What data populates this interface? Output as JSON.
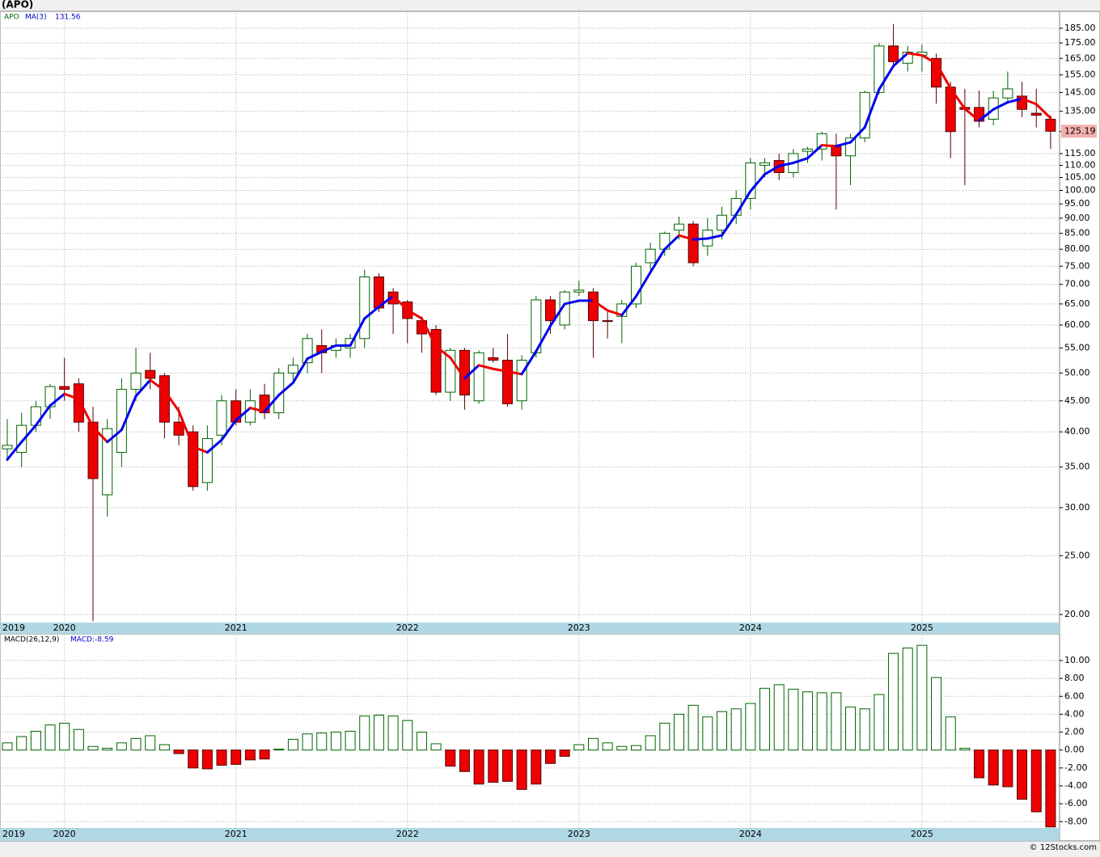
{
  "chart_data": [
    {
      "type": "candlestick",
      "title": "(APO)",
      "categories": [
        "2019",
        null,
        null,
        null,
        "2020",
        null,
        null,
        null,
        null,
        null,
        null,
        null,
        null,
        null,
        null,
        null,
        "2021",
        null,
        null,
        null,
        null,
        null,
        null,
        null,
        null,
        null,
        null,
        null,
        "2022",
        null,
        null,
        null,
        null,
        null,
        null,
        null,
        null,
        null,
        null,
        null,
        "2023",
        null,
        null,
        null,
        null,
        null,
        null,
        null,
        null,
        null,
        null,
        null,
        "2024",
        null,
        null,
        null,
        null,
        null,
        null,
        null,
        null,
        null,
        null,
        null,
        "2025",
        null,
        null,
        null,
        null,
        null,
        null,
        null,
        null,
        null
      ],
      "series": [
        {
          "name": "APO",
          "color": "#006400",
          "color_up": "#ffffff",
          "color_down": "#ee0000",
          "last_close_label": "125.19",
          "open": [
            37.5,
            37,
            41,
            44,
            47.5,
            48,
            41.5,
            31.5,
            37,
            47,
            50.5,
            49.5,
            41.5,
            40,
            33,
            39.5,
            45,
            41.5,
            46,
            43,
            50,
            52,
            55.5,
            54.5,
            55,
            57,
            72,
            68,
            65.5,
            61,
            59,
            46.5,
            54.5,
            45,
            53,
            52.5,
            45,
            54,
            66,
            60,
            68,
            68,
            61,
            62,
            65,
            76,
            80,
            86,
            88,
            81,
            86,
            91,
            97,
            110,
            112,
            107,
            116,
            117,
            118,
            114,
            122,
            145,
            173,
            162,
            167,
            165,
            148,
            137,
            137,
            131,
            142,
            143,
            134,
            131
          ],
          "high": [
            42,
            43,
            45,
            48,
            53,
            49,
            44,
            42,
            49,
            55,
            54,
            50,
            44,
            41,
            41,
            46,
            47,
            47,
            48,
            51,
            53,
            58,
            59,
            57,
            58,
            74,
            73,
            69,
            66,
            62,
            60,
            55,
            55,
            54.5,
            55,
            58,
            53.5,
            67,
            67,
            68.5,
            71,
            69,
            63,
            66,
            76,
            82,
            85.5,
            90.5,
            89,
            90,
            94,
            100,
            113,
            113,
            115,
            117,
            118,
            125,
            124,
            124,
            146,
            175,
            188,
            173,
            174,
            168,
            151,
            147,
            146,
            146,
            157,
            151,
            147,
            133
          ],
          "low": [
            36,
            35,
            40,
            42,
            45,
            40,
            19.5,
            29,
            35,
            45,
            47,
            39,
            38,
            32,
            32,
            38,
            41,
            41,
            42,
            42,
            48,
            50,
            50,
            53,
            53,
            55,
            63,
            58,
            56,
            54,
            46,
            45,
            43.5,
            44.5,
            52,
            44,
            43.5,
            53,
            58,
            59,
            67,
            53,
            57,
            56,
            64,
            74,
            78,
            83,
            75,
            78,
            83,
            88,
            93,
            105,
            104,
            105,
            111,
            112,
            93,
            102,
            120,
            144,
            160,
            157,
            157,
            139,
            113,
            102,
            127,
            128,
            140,
            132,
            127,
            117
          ],
          "close": [
            38,
            41,
            44,
            47.5,
            47,
            41.5,
            33.5,
            40.5,
            47,
            50,
            49,
            41.5,
            39.5,
            32.5,
            39,
            45,
            41.5,
            45,
            43,
            50,
            51.5,
            57,
            54,
            55.5,
            57,
            72,
            64,
            65,
            61.5,
            58,
            46.5,
            54.5,
            46,
            54,
            52.5,
            44.5,
            52.5,
            66,
            61,
            68,
            68.5,
            61,
            60.8,
            65,
            75,
            80,
            85,
            88,
            76,
            86,
            91,
            97,
            111,
            111,
            107,
            115,
            117,
            124,
            114,
            122,
            145,
            173,
            163,
            169,
            169,
            148,
            125,
            136,
            130,
            142,
            147,
            136,
            133,
            125.19
          ]
        },
        {
          "name": "MA(3)",
          "color_up": "#0000ee",
          "color_down": "#ee0000",
          "last_value_label": "131.56",
          "values": [
            36,
            38.5,
            41,
            44.2,
            46.2,
            45.3,
            40.7,
            38.5,
            40.3,
            45.8,
            48.7,
            46.8,
            43.3,
            37.8,
            37,
            38.8,
            41.8,
            43.8,
            43.2,
            46,
            48.2,
            52.8,
            54.2,
            55.5,
            55.5,
            61.5,
            64.3,
            67,
            63.5,
            61.5,
            55.3,
            53,
            49,
            51.5,
            50.8,
            50.3,
            49.8,
            54.3,
            59.8,
            65,
            65.8,
            65.8,
            63.4,
            62.3,
            66.9,
            73.3,
            80,
            84.3,
            83,
            83.3,
            84.3,
            91.3,
            99.7,
            106.3,
            109.7,
            111,
            113,
            118.7,
            118.3,
            120,
            127,
            146.7,
            160.3,
            168.3,
            167,
            162,
            147.3,
            136.3,
            130.3,
            136,
            139.7,
            141.7,
            138.7,
            131.56
          ]
        }
      ],
      "log_scale": true,
      "grid": true,
      "ylim": [
        19.4,
        197.3
      ],
      "yticks": [
        {
          "value": 185,
          "label": "185.00"
        },
        {
          "value": 175,
          "label": "175.00"
        },
        {
          "value": 165,
          "label": "165.00"
        },
        {
          "value": 155,
          "label": "155.00"
        },
        {
          "value": 145,
          "label": "145.00"
        },
        {
          "value": 135,
          "label": "135.00"
        },
        {
          "value": 125,
          "label": "125.00"
        },
        {
          "value": 115,
          "label": "115.00"
        },
        {
          "value": 110,
          "label": "110.00"
        },
        {
          "value": 105,
          "label": "105.00"
        },
        {
          "value": 100,
          "label": "100.00"
        },
        {
          "value": 95,
          "label": "95.00"
        },
        {
          "value": 90,
          "label": "90.00"
        },
        {
          "value": 85,
          "label": "85.00"
        },
        {
          "value": 80,
          "label": "80.00"
        },
        {
          "value": 75,
          "label": "75.00"
        },
        {
          "value": 70,
          "label": "70.00"
        },
        {
          "value": 65,
          "label": "65.00"
        },
        {
          "value": 60,
          "label": "60.00"
        },
        {
          "value": 55,
          "label": "55.00"
        },
        {
          "value": 50,
          "label": "50.00"
        },
        {
          "value": 45,
          "label": "45.00"
        },
        {
          "value": 40,
          "label": "40.00"
        },
        {
          "value": 35,
          "label": "35.00"
        },
        {
          "value": 30,
          "label": "30.00"
        },
        {
          "value": 25,
          "label": "25.00"
        },
        {
          "value": 20,
          "label": "20.00"
        }
      ]
    },
    {
      "type": "bar",
      "categories": [
        "2019",
        null,
        null,
        null,
        "2020",
        null,
        null,
        null,
        null,
        null,
        null,
        null,
        null,
        null,
        null,
        null,
        "2021",
        null,
        null,
        null,
        null,
        null,
        null,
        null,
        null,
        null,
        null,
        null,
        "2022",
        null,
        null,
        null,
        null,
        null,
        null,
        null,
        null,
        null,
        null,
        null,
        "2023",
        null,
        null,
        null,
        null,
        null,
        null,
        null,
        null,
        null,
        null,
        null,
        "2024",
        null,
        null,
        null,
        null,
        null,
        null,
        null,
        null,
        null,
        null,
        null,
        "2025",
        null,
        null,
        null,
        null,
        null,
        null,
        null,
        null,
        null
      ],
      "series": [
        {
          "name": "MACD(26,12,9)",
          "value_label": "MACD:-8.59",
          "color_up": "#006400",
          "color_down": "#ee0000",
          "values": [
            0.8,
            1.5,
            2.1,
            2.8,
            3.0,
            2.3,
            0.4,
            0.2,
            0.8,
            1.3,
            1.6,
            0.6,
            -0.4,
            -2.0,
            -2.1,
            -1.7,
            -1.6,
            -1.1,
            -1.0,
            0.1,
            1.2,
            1.8,
            1.9,
            2.0,
            2.1,
            3.8,
            3.9,
            3.8,
            3.3,
            2.0,
            0.7,
            -1.8,
            -2.4,
            -3.8,
            -3.6,
            -3.5,
            -4.4,
            -3.8,
            -1.5,
            -0.7,
            0.6,
            1.3,
            0.8,
            0.4,
            0.5,
            1.6,
            3.0,
            4.0,
            5.0,
            3.7,
            4.3,
            4.6,
            5.2,
            6.9,
            7.3,
            6.8,
            6.5,
            6.4,
            6.4,
            4.8,
            4.6,
            6.2,
            10.8,
            11.4,
            11.7,
            8.1,
            3.7,
            0.2,
            -3.1,
            -3.9,
            -4.1,
            -5.5,
            -6.9,
            -8.59
          ]
        }
      ],
      "grid": true,
      "ylim": [
        -8.7,
        12.8
      ],
      "yticks": [
        {
          "value": 10,
          "label": "10.00"
        },
        {
          "value": 8,
          "label": "8.00"
        },
        {
          "value": 6,
          "label": "6.00"
        },
        {
          "value": 4,
          "label": "4.00"
        },
        {
          "value": 2,
          "label": "2.00"
        },
        {
          "value": 0,
          "label": "0.00"
        },
        {
          "value": -2,
          "label": "-2.00"
        },
        {
          "value": -4,
          "label": "-4.00"
        },
        {
          "value": -6,
          "label": "-6.00"
        },
        {
          "value": -8,
          "label": "-8.00"
        }
      ]
    }
  ],
  "footer": "© 12Stocks.com"
}
